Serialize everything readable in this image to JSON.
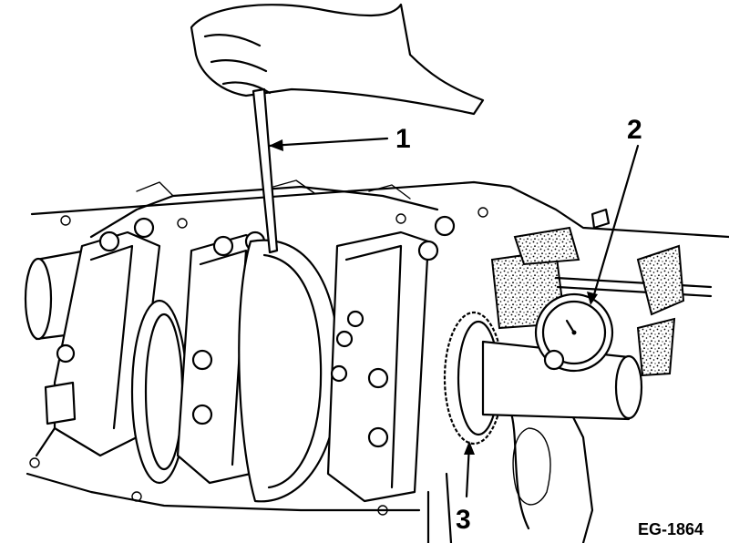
{
  "figure": {
    "code": "EG-1864",
    "callouts": [
      {
        "label": "1"
      },
      {
        "label": "2"
      },
      {
        "label": "3"
      }
    ]
  }
}
